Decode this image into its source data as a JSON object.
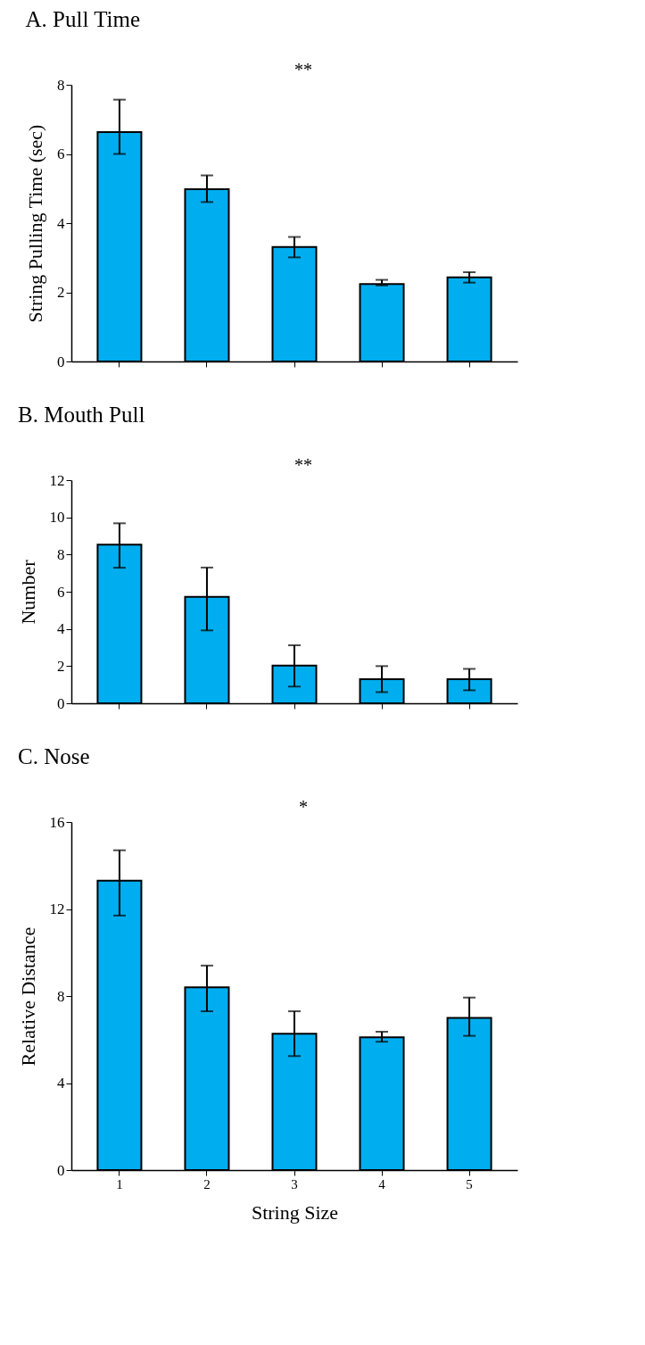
{
  "chart_data": [
    {
      "type": "bar",
      "title": "A. Pull Time",
      "ylabel": "String Pulling Time (sec)",
      "categories": [
        "1",
        "2",
        "3",
        "4",
        "5"
      ],
      "values": [
        6.63,
        4.98,
        3.31,
        2.24,
        2.43
      ],
      "errors": [
        [
          6.0,
          7.57
        ],
        [
          4.61,
          5.38
        ],
        [
          3.01,
          3.6
        ],
        [
          2.2,
          2.36
        ],
        0.15
      ],
      "color": "#00aeef",
      "ylim": [
        0,
        8
      ],
      "yticks": [
        0,
        2,
        4,
        6,
        8
      ],
      "tick_labels": "y",
      "annotations": [
        "**"
      ]
    },
    {
      "type": "bar",
      "title": "B. Mouth Pull",
      "ylabel": "Number",
      "categories": [
        "1",
        "2",
        "3",
        "4",
        "5"
      ],
      "values": [
        8.53,
        5.73,
        2.03,
        1.3,
        1.3
      ],
      "errors": [
        [
          7.29,
          9.68
        ],
        [
          3.92,
          7.3
        ],
        [
          0.9,
          3.12
        ],
        [
          0.6,
          2.0
        ],
        [
          0.7,
          1.85
        ]
      ],
      "color": "#00aeef",
      "ylim": [
        0,
        12
      ],
      "yticks": [
        0,
        2,
        4,
        6,
        8,
        10,
        12
      ],
      "tick_labels": "y",
      "annotations": [
        "**"
      ]
    },
    {
      "type": "bar",
      "title": "C. Nose",
      "xlabel": "String Size",
      "ylabel": "Relative Distance",
      "categories": [
        "1",
        "2",
        "3",
        "4",
        "5"
      ],
      "values": [
        13.3,
        8.4,
        6.27,
        6.1,
        7.0
      ],
      "errors": [
        [
          11.7,
          14.7
        ],
        [
          7.3,
          9.4
        ],
        [
          5.24,
          7.3
        ],
        [
          5.9,
          6.36
        ],
        [
          6.17,
          7.93
        ]
      ],
      "color": "#00aeef",
      "ylim": [
        0,
        16
      ],
      "yticks": [
        0,
        4,
        8,
        12,
        16
      ],
      "annotations": [
        "*"
      ]
    }
  ]
}
